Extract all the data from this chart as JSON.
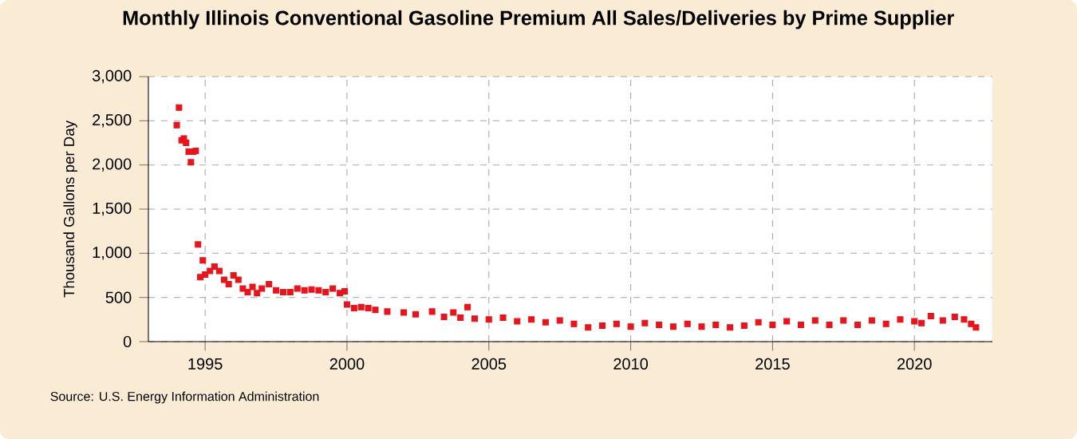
{
  "chart_data": {
    "type": "scatter",
    "title": "Monthly Illinois Conventional Gasoline Premium All Sales/Deliveries by Prime Supplier",
    "ylabel": "Thousand Gallons per Day",
    "annotations": [
      "Source: U.S. Energy Information Administration"
    ],
    "x": [
      "1994-01",
      "1994-02",
      "1994-03",
      "1994-04",
      "1994-05",
      "1994-06",
      "1994-07",
      "1994-08",
      "1994-09",
      "1994-10",
      "1994-11",
      "1994-12",
      "1995-01",
      "1995-03",
      "1995-05",
      "1995-07",
      "1995-09",
      "1995-11",
      "1996-01",
      "1996-03",
      "1996-05",
      "1996-07",
      "1996-09",
      "1996-11",
      "1997-01",
      "1997-04",
      "1997-07",
      "1997-10",
      "1998-01",
      "1998-04",
      "1998-07",
      "1998-10",
      "1999-01",
      "1999-04",
      "1999-07",
      "1999-10",
      "1999-12",
      "2000-01",
      "2000-04",
      "2000-07",
      "2000-10",
      "2001-01",
      "2001-06",
      "2002-01",
      "2002-06",
      "2003-01",
      "2003-06",
      "2003-10",
      "2004-01",
      "2004-04",
      "2004-07",
      "2005-01",
      "2005-07",
      "2006-01",
      "2006-07",
      "2007-01",
      "2007-07",
      "2008-01",
      "2008-07",
      "2009-01",
      "2009-07",
      "2010-01",
      "2010-07",
      "2011-01",
      "2011-07",
      "2012-01",
      "2012-07",
      "2013-01",
      "2013-07",
      "2014-01",
      "2014-07",
      "2015-01",
      "2015-07",
      "2016-01",
      "2016-07",
      "2017-01",
      "2017-07",
      "2018-01",
      "2018-07",
      "2019-01",
      "2019-07",
      "2020-01",
      "2020-04",
      "2020-08",
      "2021-01",
      "2021-06",
      "2021-10",
      "2022-01",
      "2022-03"
    ],
    "values": [
      2450,
      2650,
      2280,
      2300,
      2250,
      2150,
      2030,
      2150,
      2160,
      1100,
      730,
      920,
      760,
      800,
      850,
      800,
      700,
      650,
      750,
      700,
      600,
      560,
      620,
      550,
      600,
      650,
      580,
      560,
      560,
      600,
      580,
      590,
      580,
      560,
      600,
      550,
      570,
      420,
      380,
      390,
      380,
      360,
      340,
      330,
      310,
      340,
      280,
      330,
      270,
      390,
      260,
      250,
      270,
      230,
      250,
      220,
      240,
      200,
      160,
      180,
      200,
      170,
      210,
      190,
      170,
      200,
      170,
      190,
      160,
      180,
      220,
      190,
      230,
      190,
      240,
      190,
      240,
      190,
      240,
      200,
      250,
      230,
      210,
      290,
      240,
      280,
      250,
      200,
      160
    ],
    "color": "#e8141c",
    "marker": "square",
    "grid": true,
    "xlim": [
      "1993-01",
      "2022-10"
    ],
    "xticks": [
      "1995",
      "2000",
      "2005",
      "2010",
      "2015",
      "2020"
    ],
    "ylim": [
      0,
      3000
    ],
    "yticks": [
      {
        "value": 0,
        "label": "0"
      },
      {
        "value": 500,
        "label": "500"
      },
      {
        "value": 1000,
        "label": "1,000"
      },
      {
        "value": 1500,
        "label": "1,500"
      },
      {
        "value": 2000,
        "label": "2,000"
      },
      {
        "value": 2500,
        "label": "2,500"
      },
      {
        "value": 3000,
        "label": "3,000"
      }
    ]
  }
}
